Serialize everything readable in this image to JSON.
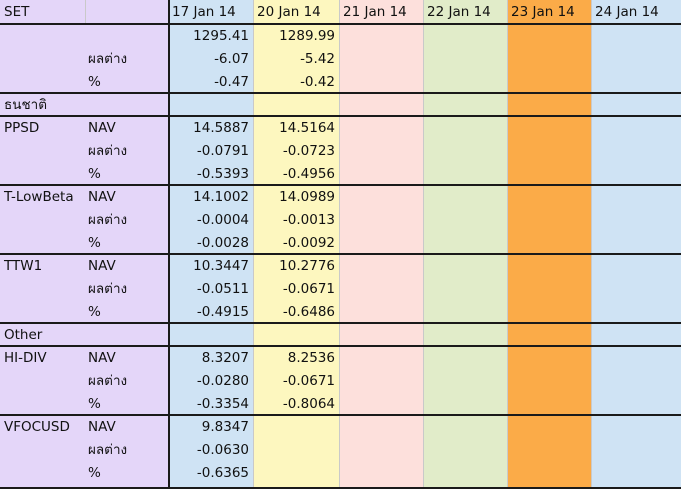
{
  "colors": {
    "label_bg": "#e4d6f9",
    "col_17": "#cfe3f4",
    "col_20": "#fdf7bf",
    "col_21": "#fde0dc",
    "col_22": "#e1ecc9",
    "col_23": "#fbab48",
    "col_24": "#cfe3f4",
    "gridline": "#1a1a1a"
  },
  "header": {
    "corner": "SET",
    "dates": [
      "17 Jan  14",
      "20 Jan 14",
      "21 Jan 14",
      "22 Jan 14",
      "23 Jan 14",
      "24 Jan 14"
    ]
  },
  "rows": [
    {
      "name": "",
      "metric": "",
      "values": [
        "1295.41",
        "1289.99"
      ]
    },
    {
      "name": "",
      "metric": "ผลต่าง",
      "values": [
        "-6.07",
        "-5.42"
      ]
    },
    {
      "name": "",
      "metric": "%",
      "values": [
        "-0.47",
        "-0.42"
      ]
    },
    {
      "name": "ธนชาติ",
      "metric": "",
      "values": []
    },
    {
      "name": "PPSD",
      "metric": "NAV",
      "values": [
        "14.5887",
        "14.5164"
      ]
    },
    {
      "name": "",
      "metric": "ผลต่าง",
      "values": [
        "-0.0791",
        "-0.0723"
      ]
    },
    {
      "name": "",
      "metric": "%",
      "values": [
        "-0.5393",
        "-0.4956"
      ]
    },
    {
      "name": "T-LowBeta",
      "metric": "NAV",
      "values": [
        "14.1002",
        "14.0989"
      ]
    },
    {
      "name": "",
      "metric": "ผลต่าง",
      "values": [
        "-0.0004",
        "-0.0013"
      ]
    },
    {
      "name": "",
      "metric": "%",
      "values": [
        "-0.0028",
        "-0.0092"
      ]
    },
    {
      "name": "TTW1",
      "metric": "NAV",
      "values": [
        "10.3447",
        "10.2776"
      ]
    },
    {
      "name": "",
      "metric": "ผลต่าง",
      "values": [
        "-0.0511",
        "-0.0671"
      ]
    },
    {
      "name": "",
      "metric": "%",
      "values": [
        "-0.4915",
        "-0.6486"
      ]
    },
    {
      "name": "Other",
      "metric": "",
      "values": []
    },
    {
      "name": "HI-DIV",
      "metric": "NAV",
      "values": [
        "8.3207",
        "8.2536"
      ]
    },
    {
      "name": "",
      "metric": "ผลต่าง",
      "values": [
        "-0.0280",
        "-0.0671"
      ]
    },
    {
      "name": "",
      "metric": "%",
      "values": [
        "-0.3354",
        "-0.8064"
      ]
    },
    {
      "name": "VFOCUSD",
      "metric": "NAV",
      "values": [
        "9.8347",
        ""
      ]
    },
    {
      "name": "",
      "metric": "ผลต่าง",
      "values": [
        "-0.0630",
        ""
      ]
    },
    {
      "name": "",
      "metric": "%",
      "values": [
        "-0.6365",
        ""
      ]
    }
  ]
}
